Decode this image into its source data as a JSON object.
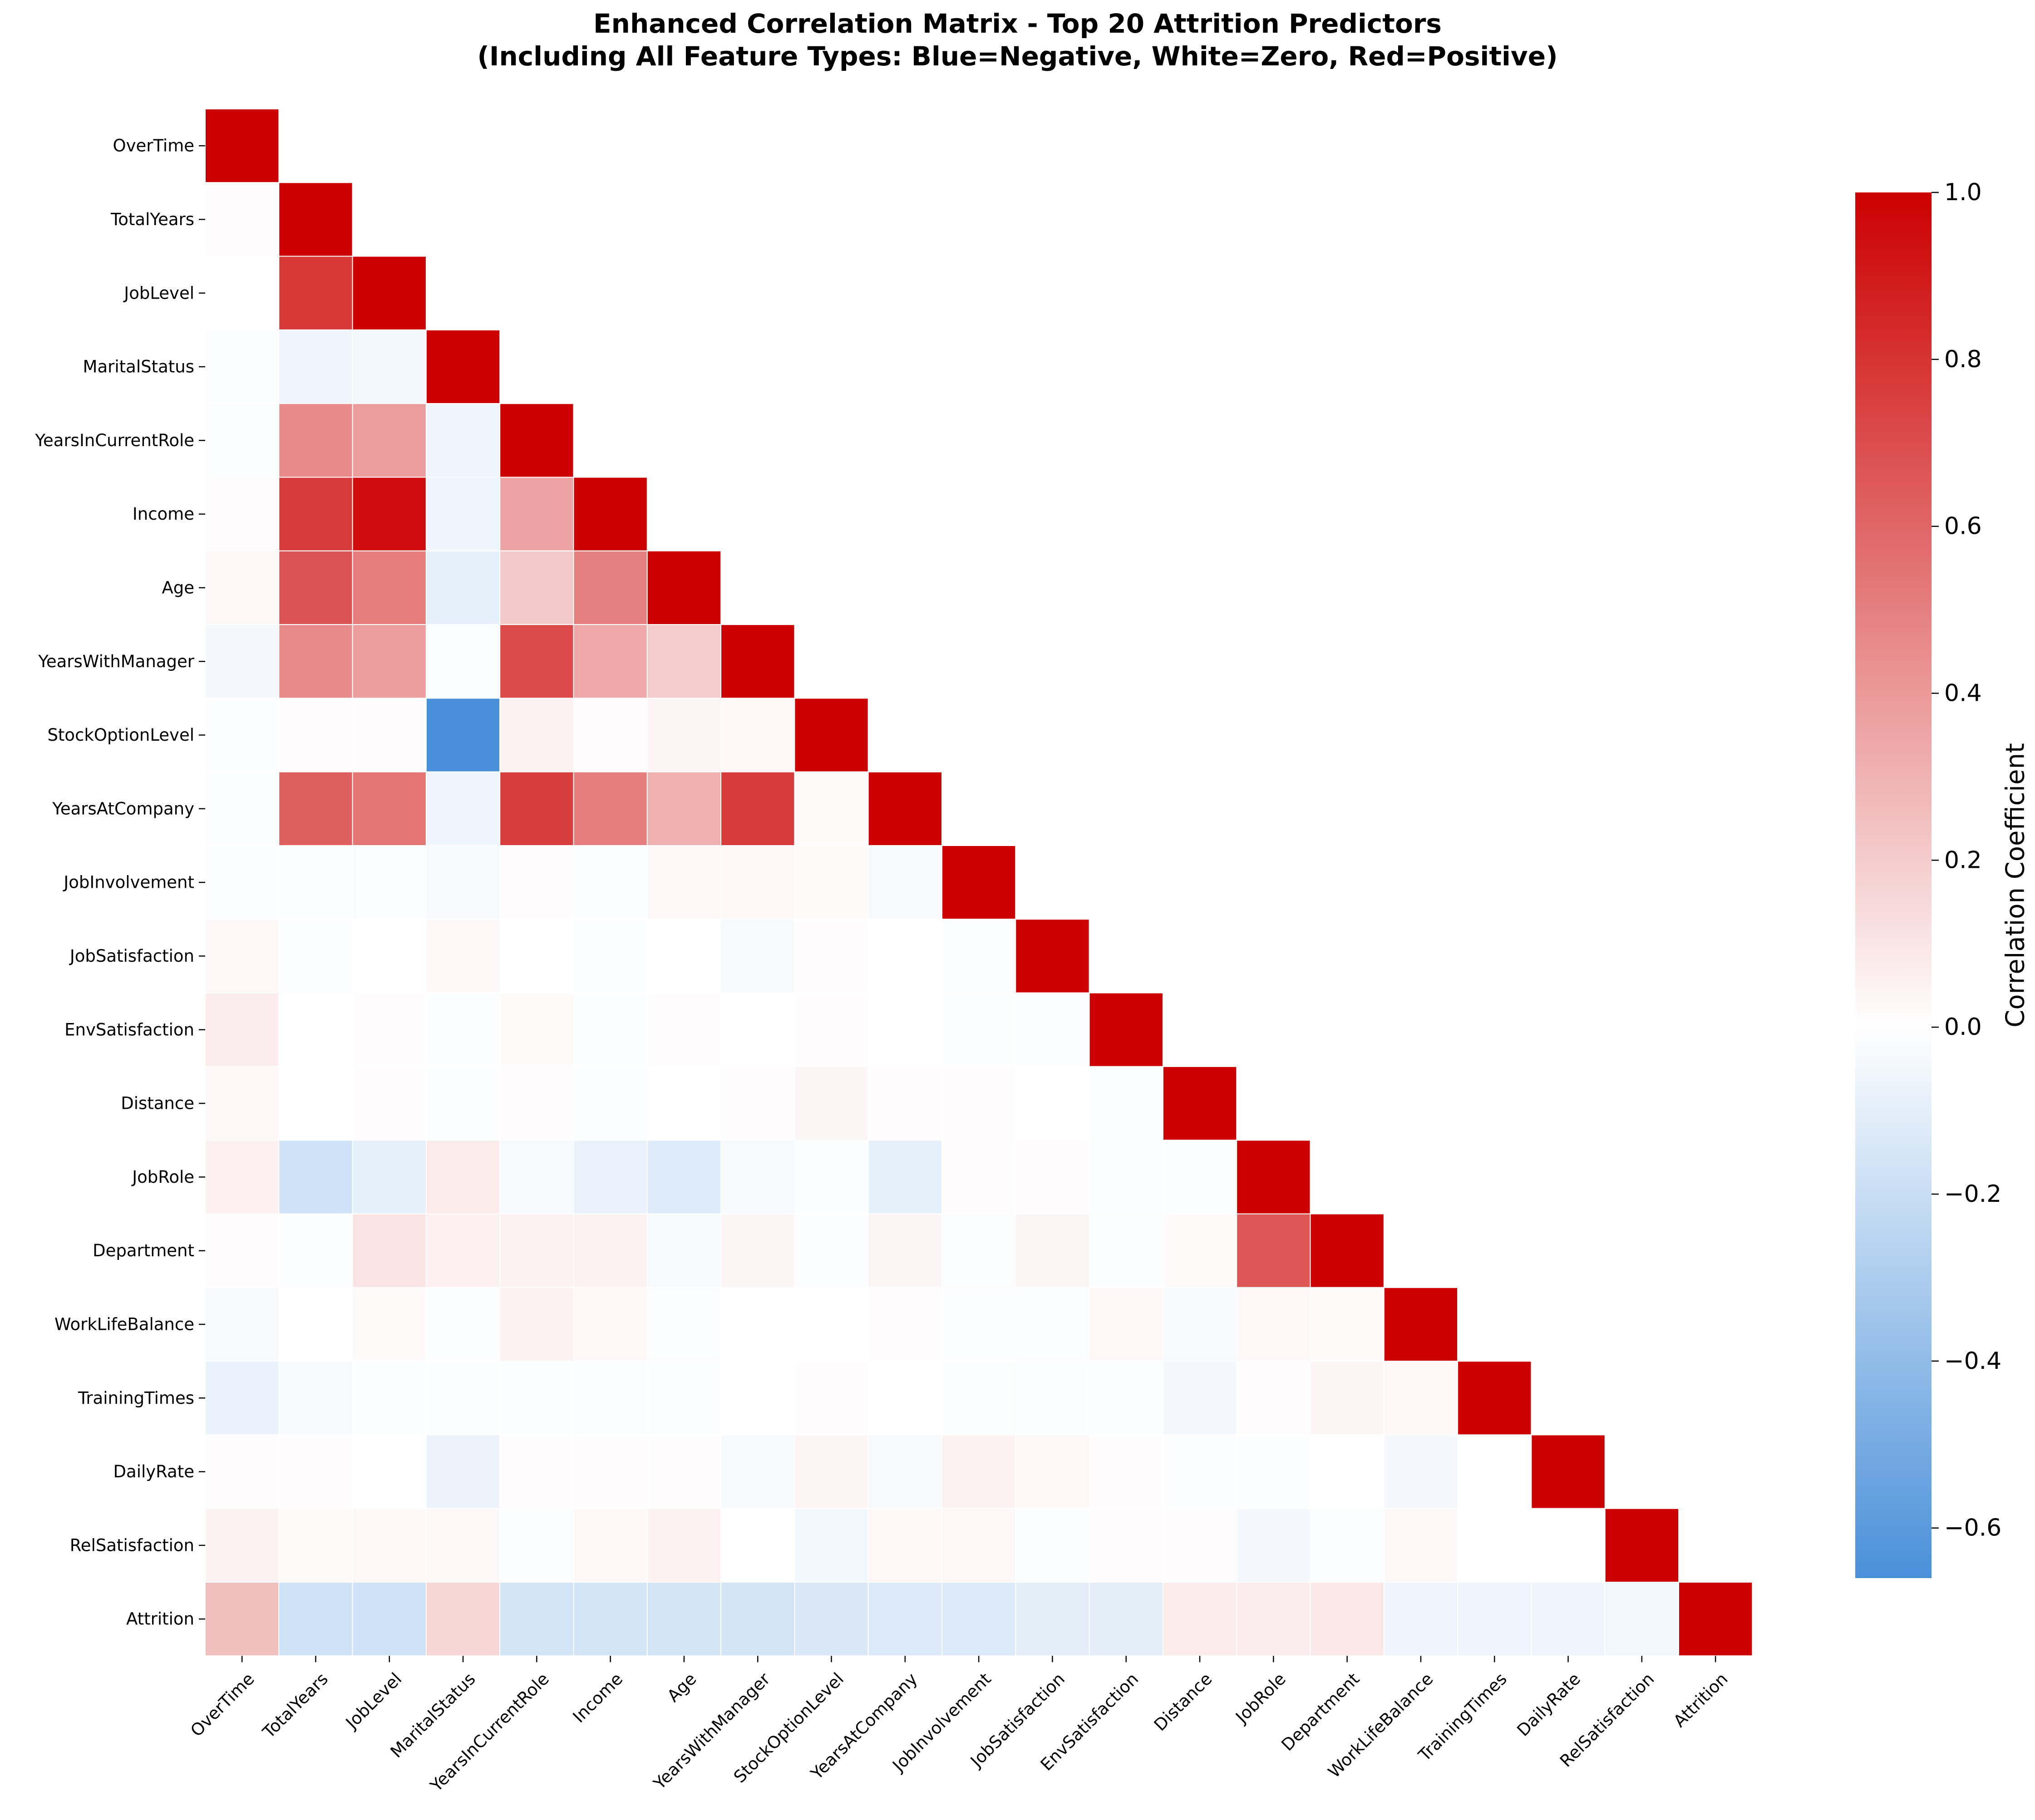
{
  "chart_data": {
    "type": "heatmap",
    "title": "Enhanced Correlation Matrix - Top 20 Attrition Predictors",
    "subtitle": "(Including All Feature Types: Blue=Negative, White=Zero, Red=Positive)",
    "labels": [
      "OverTime",
      "TotalYears",
      "JobLevel",
      "MaritalStatus",
      "YearsInCurrentRole",
      "Income",
      "Age",
      "YearsWithManager",
      "StockOptionLevel",
      "YearsAtCompany",
      "JobInvolvement",
      "JobSatisfaction",
      "EnvSatisfaction",
      "Distance",
      "JobRole",
      "Department",
      "WorkLifeBalance",
      "TrainingTimes",
      "DailyRate",
      "RelSatisfaction",
      "Attrition"
    ],
    "mask": "upper triangle (lower triangle with diagonal shown)",
    "values": [
      [
        1.0
      ],
      [
        0.01,
        1.0
      ],
      [
        0.0,
        0.78,
        1.0
      ],
      [
        -0.01,
        -0.06,
        -0.05,
        1.0
      ],
      [
        -0.02,
        0.46,
        0.39,
        -0.06,
        1.0
      ],
      [
        0.01,
        0.77,
        0.95,
        -0.06,
        0.36,
        1.0
      ],
      [
        0.03,
        0.68,
        0.51,
        -0.09,
        0.21,
        0.5,
        1.0
      ],
      [
        -0.04,
        0.46,
        0.38,
        -0.02,
        0.71,
        0.34,
        0.2,
        1.0
      ],
      [
        -0.01,
        0.01,
        0.01,
        -0.66,
        0.05,
        0.01,
        0.04,
        0.03,
        1.0
      ],
      [
        -0.01,
        0.63,
        0.54,
        -0.06,
        0.76,
        0.51,
        0.31,
        0.77,
        0.02,
        1.0
      ],
      [
        -0.01,
        -0.01,
        -0.02,
        -0.03,
        0.01,
        -0.02,
        0.03,
        0.03,
        0.02,
        -0.03,
        1.0
      ],
      [
        0.03,
        -0.02,
        -0.0,
        0.03,
        -0.0,
        -0.01,
        -0.0,
        -0.03,
        0.01,
        -0.0,
        -0.02,
        1.0
      ],
      [
        0.07,
        -0.0,
        0.01,
        -0.01,
        0.02,
        -0.01,
        0.01,
        -0.0,
        0.01,
        0.0,
        -0.01,
        -0.01,
        1.0
      ],
      [
        0.03,
        0.0,
        0.01,
        -0.01,
        0.01,
        -0.02,
        -0.0,
        0.01,
        0.04,
        0.01,
        0.01,
        -0.0,
        -0.02,
        1.0
      ],
      [
        0.06,
        -0.17,
        -0.09,
        0.08,
        -0.03,
        -0.08,
        -0.12,
        -0.03,
        -0.01,
        -0.09,
        0.01,
        0.01,
        -0.02,
        -0.01,
        1.0
      ],
      [
        0.01,
        -0.01,
        0.11,
        0.06,
        0.05,
        0.05,
        -0.03,
        0.04,
        -0.01,
        0.04,
        -0.02,
        0.04,
        -0.02,
        0.02,
        0.66,
        1.0
      ],
      [
        -0.03,
        0.0,
        0.02,
        -0.01,
        0.05,
        0.03,
        -0.02,
        0.0,
        0.0,
        0.01,
        -0.01,
        -0.02,
        0.03,
        -0.03,
        0.03,
        0.02,
        1.0
      ],
      [
        -0.08,
        -0.03,
        -0.01,
        -0.01,
        -0.01,
        -0.02,
        -0.01,
        -0.0,
        0.01,
        0.0,
        -0.02,
        -0.01,
        -0.01,
        -0.04,
        0.01,
        0.04,
        0.03,
        1.0
      ],
      [
        0.01,
        0.01,
        0.0,
        -0.07,
        0.01,
        0.01,
        0.01,
        -0.03,
        0.04,
        -0.03,
        0.05,
        0.03,
        0.01,
        -0.01,
        -0.01,
        -0.0,
        -0.04,
        0.0,
        1.0
      ],
      [
        0.05,
        0.02,
        0.03,
        0.03,
        -0.02,
        0.03,
        0.05,
        -0.0,
        -0.05,
        0.03,
        0.03,
        -0.01,
        0.01,
        0.01,
        -0.04,
        -0.02,
        0.03,
        0.0,
        0.0,
        1.0
      ],
      [
        0.25,
        -0.17,
        -0.17,
        0.16,
        -0.16,
        -0.16,
        -0.16,
        -0.16,
        -0.14,
        -0.13,
        -0.13,
        -0.1,
        -0.1,
        0.08,
        0.07,
        0.09,
        -0.06,
        -0.06,
        -0.06,
        -0.05,
        1.0
      ]
    ],
    "vmin": -0.66,
    "vmax": 1.0,
    "colors": {
      "negative": "#4a90d9",
      "zero": "#ffffff",
      "positive": "#cc0000"
    },
    "colorbar": {
      "label": "Correlation Coefficient",
      "ticks": [
        1.0,
        0.8,
        0.6,
        0.4,
        0.2,
        0.0,
        -0.2,
        -0.4,
        -0.6
      ],
      "tick_labels": [
        "1.0",
        "0.8",
        "0.6",
        "0.4",
        "0.2",
        "0.0",
        "−0.2",
        "−0.4",
        "−0.6"
      ]
    },
    "grid": false
  }
}
